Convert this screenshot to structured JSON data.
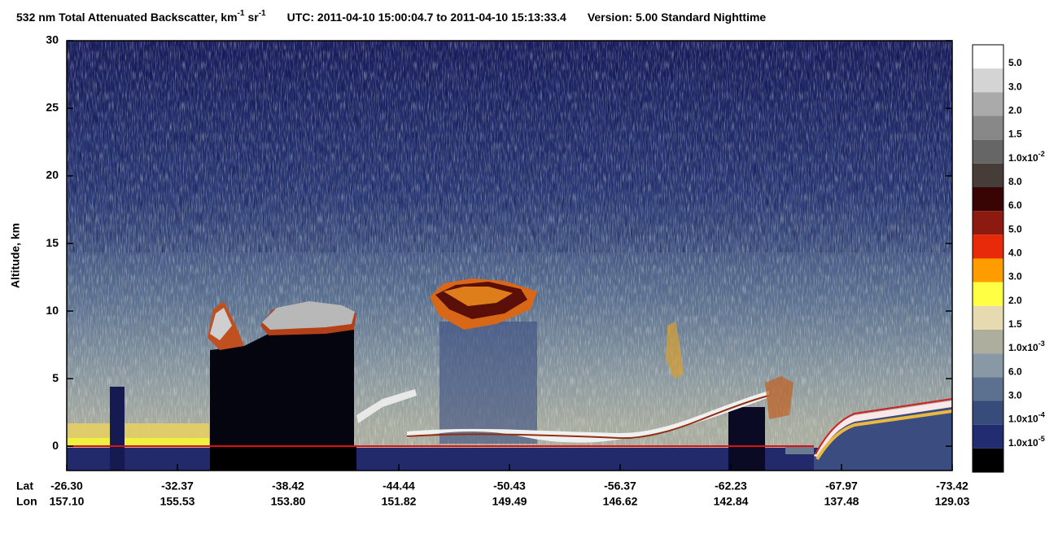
{
  "chart_data": {
    "type": "heatmap",
    "title": {
      "main": "532 nm Total Attenuated Backscatter, km",
      "exp1": "-1",
      "unit2": "sr",
      "exp2": "-1",
      "utc": "UTC:  2011-04-10 15:00:04.7  to  2011-04-10 15:13:33.4",
      "version": "Version: 5.00  Standard  Nighttime"
    },
    "y_label": "Altitude, km",
    "ylim": [
      -1.8,
      30
    ],
    "yticks": [
      0,
      5,
      10,
      15,
      20,
      25,
      30
    ],
    "x_row_labels": [
      "Lat",
      "Lon"
    ],
    "lat": [
      "-26.30",
      "-32.37",
      "-38.42",
      "-44.44",
      "-50.43",
      "-56.37",
      "-62.23",
      "-67.97",
      "-73.42"
    ],
    "lon": [
      "157.10",
      "155.53",
      "153.80",
      "151.82",
      "149.49",
      "146.62",
      "142.84",
      "137.48",
      "129.03"
    ],
    "colorbar": {
      "colors": [
        "#ffffff",
        "#d4d4d4",
        "#aaaaaa",
        "#888888",
        "#666666",
        "#463c38",
        "#380404",
        "#8c1a10",
        "#e82a0a",
        "#ff9c00",
        "#ffff44",
        "#e8dab0",
        "#aeae9e",
        "#8898a4",
        "#5c7090",
        "#384c7c",
        "#222c70",
        "#000000"
      ],
      "labels": [
        {
          "text": "5.0"
        },
        {
          "text": "3.0"
        },
        {
          "text": "2.0"
        },
        {
          "text": "1.5"
        },
        {
          "text": "1.0x10",
          "sup": "-2"
        },
        {
          "text": "8.0"
        },
        {
          "text": "6.0"
        },
        {
          "text": "5.0"
        },
        {
          "text": "4.0"
        },
        {
          "text": "3.0"
        },
        {
          "text": "2.0"
        },
        {
          "text": "1.5"
        },
        {
          "text": "1.0x10",
          "sup": "-3"
        },
        {
          "text": "6.0"
        },
        {
          "text": "3.0"
        },
        {
          "text": "1.0x10",
          "sup": "-4"
        },
        {
          "text": "1.0x10",
          "sup": "-5"
        }
      ]
    }
  }
}
